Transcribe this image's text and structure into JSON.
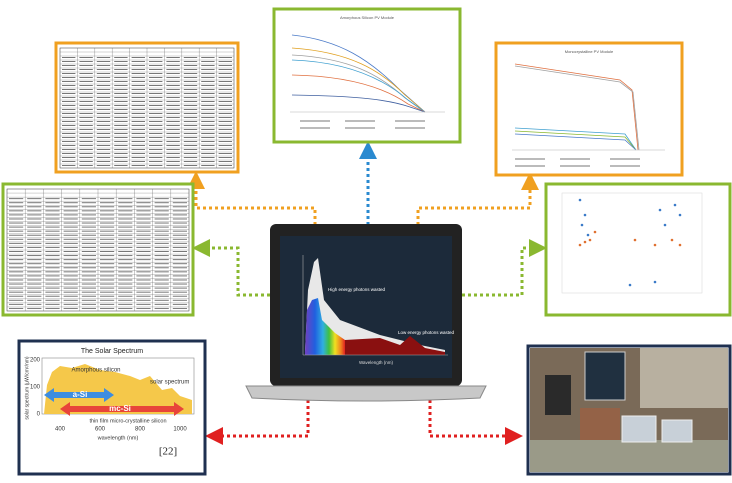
{
  "panels": {
    "amorphous_chart_title": "Amorphous Silicon PV Module",
    "mono_chart_title": "Monocrystalline PV Module"
  },
  "laptop": {
    "high_energy": "High energy photons wasted",
    "low_energy": "Low energy photons wasted",
    "x_label": "Wavelength (nm)"
  },
  "spectrum": {
    "title": "The Solar Spectrum",
    "amorphous": "Amorphous silicon",
    "solar": "solar spectrum",
    "a_si": "a-Si",
    "mc_si": "mc-Si",
    "thin_film": "thin film micro-crystalline silicon",
    "x_label": "wavelength (nm)",
    "y_label": "solar spectrum (μW/cm²/nm)",
    "x_ticks": [
      "400",
      "600",
      "800",
      "1000"
    ],
    "y_ticks": [
      "200",
      "100",
      "0"
    ],
    "citation": "[22]"
  }
}
